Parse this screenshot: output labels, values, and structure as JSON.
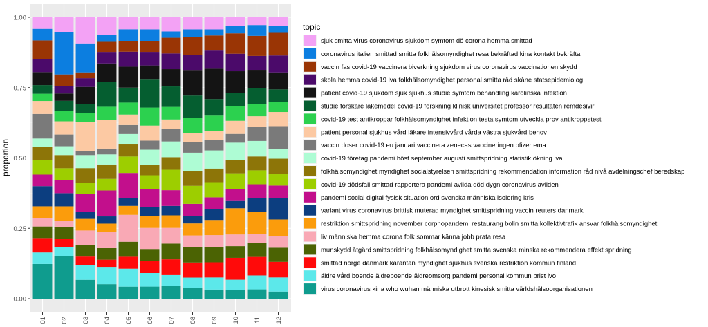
{
  "chart_data": {
    "type": "bar",
    "stacked": true,
    "title": "",
    "xlabel": "",
    "ylabel": "proportion",
    "ylim": [
      0,
      1
    ],
    "yticks": [
      "0.00",
      "0.25",
      "0.50",
      "0.75",
      "1.00"
    ],
    "categories": [
      "01",
      "02",
      "03",
      "04",
      "05",
      "06",
      "07",
      "08",
      "09",
      "10",
      "11",
      "12"
    ],
    "legend_title": "topic",
    "legend_position": "right",
    "series": [
      {
        "name": "virus coronavirus kina who wuhan  människa utbrott kinesisk smitta världshälsoorganisationen",
        "color": "#0f9c8e",
        "values": [
          0.12,
          0.145,
          0.065,
          0.05,
          0.04,
          0.04,
          0.04,
          0.035,
          0.03,
          0.03,
          0.03,
          0.025
        ]
      },
      {
        "name": "äldre vård boende äldreboende äldreomsorg pandemi personal kommun brist ivo",
        "color": "#5ce8ea",
        "values": [
          0.04,
          0.03,
          0.05,
          0.06,
          0.06,
          0.045,
          0.035,
          0.035,
          0.04,
          0.035,
          0.045,
          0.05
        ]
      },
      {
        "name": "smittad norge danmark karantän myndighet sjukhus svenska restriktion kommun finland",
        "color": "#ff0a0a",
        "values": [
          0.05,
          0.03,
          0.03,
          0.025,
          0.04,
          0.04,
          0.05,
          0.05,
          0.05,
          0.075,
          0.06,
          0.055
        ]
      },
      {
        "name": "munskydd åtgärd smittspridning folkhälsomyndighet smitta svenska minska rekommendera effekt spridning",
        "color": "#4b6303",
        "values": [
          0.04,
          0.04,
          0.04,
          0.04,
          0.05,
          0.04,
          0.05,
          0.05,
          0.05,
          0.04,
          0.045,
          0.05
        ]
      },
      {
        "name": "liv  människa hemma corona folk sommar känna jobb prata resa",
        "color": "#f9a9b5",
        "values": [
          0.03,
          0.02,
          0.05,
          0.055,
          0.09,
          0.07,
          0.05,
          0.04,
          0.04,
          0.04,
          0.03,
          0.04
        ]
      },
      {
        "name": "restriktion smittspridning november corpnopandemi restaurang bolin smitta kollektivtrafik ansvar folkhälsomyndighet",
        "color": "#fb9c0c",
        "values": [
          0.04,
          0.05,
          0.04,
          0.03,
          0.03,
          0.04,
          0.04,
          0.04,
          0.05,
          0.09,
          0.07,
          0.06
        ]
      },
      {
        "name": "variant virus coronavirus  brittisk muterad myndighet smittspridning vaccin reuters danmark",
        "color": "#0c3e80",
        "values": [
          0.07,
          0.045,
          0.025,
          0.025,
          0.025,
          0.03,
          0.03,
          0.025,
          0.035,
          0.025,
          0.045,
          0.075
        ]
      },
      {
        "name": "pandemi social digital fysisk situation ord svenska  människa isolering kris",
        "color": "#c20f8c",
        "values": [
          0.04,
          0.045,
          0.06,
          0.09,
          0.085,
          0.06,
          0.05,
          0.04,
          0.04,
          0.04,
          0.045,
          0.045
        ]
      },
      {
        "name": "covid-19 dödsfall smittad rapportera pandemi avlida död dygn coronavirus avliden",
        "color": "#9dce00",
        "values": [
          0.05,
          0.04,
          0.04,
          0.04,
          0.055,
          0.045,
          0.065,
          0.06,
          0.05,
          0.055,
          0.045,
          0.04
        ]
      },
      {
        "name": "folkhälsomyndighet myndighet socialstyrelsen smittspridning rekommendation information råd nivå avdelningschef beredskap",
        "color": "#8d7508",
        "values": [
          0.045,
          0.045,
          0.05,
          0.05,
          0.04,
          0.035,
          0.04,
          0.05,
          0.045,
          0.045,
          0.045,
          0.055
        ]
      },
      {
        "name": "covid-19 företag pandemi höst september augusti smittspridning statistik ökning iva",
        "color": "#aefcd4",
        "values": [
          0.03,
          0.03,
          0.045,
          0.035,
          0.035,
          0.05,
          0.05,
          0.06,
          0.06,
          0.06,
          0.05,
          0.035
        ]
      },
      {
        "name": "vaccin doser covid-19 eu januari vaccinera zenecas vaccineringen pfizer ema",
        "color": "#7a7a7a",
        "values": [
          0.085,
          0.04,
          0.015,
          0.02,
          0.03,
          0.03,
          0.04,
          0.035,
          0.035,
          0.03,
          0.045,
          0.08
        ]
      },
      {
        "name": "patient personal sjukhus vård läkare intensivvård vårda västra sjukvård behov",
        "color": "#fcc9a3",
        "values": [
          0.045,
          0.045,
          0.1,
          0.1,
          0.035,
          0.05,
          0.03,
          0.03,
          0.03,
          0.045,
          0.035,
          0.05
        ]
      },
      {
        "name": "covid-19 test antikroppar folkhälsomyndighet infektion testa symtom utveckla prov antikroppstest",
        "color": "#2cd14f",
        "values": [
          0.025,
          0.035,
          0.03,
          0.045,
          0.04,
          0.06,
          0.04,
          0.05,
          0.05,
          0.05,
          0.04,
          0.035
        ]
      },
      {
        "name": "studie forskare läkemedel covid-19 forskning klinisk universitet professor resultaten remdesivir",
        "color": "#055e30",
        "values": [
          0.03,
          0.035,
          0.03,
          0.085,
          0.05,
          0.095,
          0.065,
          0.075,
          0.055,
          0.045,
          0.05,
          0.045
        ]
      },
      {
        "name": "patient covid-19 sjukdom sjuk sjukhus studie symtom behandling karolinska infektion",
        "color": "#141414",
        "values": [
          0.045,
          0.025,
          0.06,
          0.065,
          0.07,
          0.045,
          0.055,
          0.085,
          0.1,
          0.075,
          0.06,
          0.06
        ]
      },
      {
        "name": "skola hemma covid-19 iva folkhälsomyndighet personal smitta råd skåne statsepidemiolog",
        "color": "#4b0a6a",
        "values": [
          0.045,
          0.025,
          0.03,
          0.04,
          0.05,
          0.045,
          0.05,
          0.05,
          0.06,
          0.06,
          0.045,
          0.06
        ]
      },
      {
        "name": "vaccin fas covid-19 vaccinera biverkning sjukdom virus coronavirus vaccinationen skydd",
        "color": "#9a3505",
        "values": [
          0.065,
          0.04,
          0.02,
          0.035,
          0.035,
          0.035,
          0.05,
          0.06,
          0.05,
          0.07,
          0.065,
          0.08
        ]
      },
      {
        "name": "coronavirus italien smittad smitta folkhälsomyndighet resa bekräftad kina kontakt bekräfta",
        "color": "#0c7ee0",
        "values": [
          0.04,
          0.145,
          0.1,
          0.025,
          0.04,
          0.04,
          0.02,
          0.025,
          0.02,
          0.025,
          0.035,
          0.025
        ]
      },
      {
        "name": "sjuk smitta virus coronavirus sjukdom symtom dö corona hemma smittad",
        "color": "#f3a2f5",
        "values": [
          0.04,
          0.05,
          0.09,
          0.06,
          0.04,
          0.04,
          0.045,
          0.04,
          0.04,
          0.03,
          0.025,
          0.03
        ]
      }
    ]
  }
}
